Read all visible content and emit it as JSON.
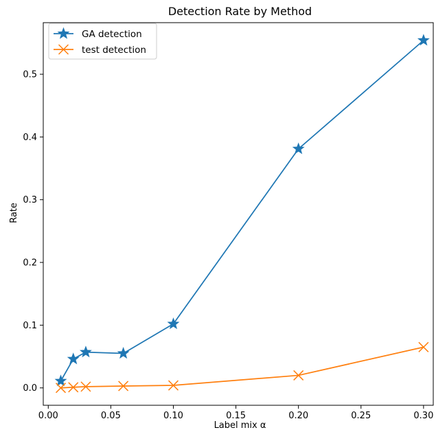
{
  "chart_data": {
    "type": "line",
    "title": "Detection Rate by Method",
    "xlabel": "Label mix α",
    "ylabel": "Rate",
    "xlim": [
      -0.004,
      0.3105
    ],
    "ylim": [
      -0.0277,
      0.5822
    ],
    "xticks": [
      0.0,
      0.05,
      0.1,
      0.15,
      0.2,
      0.25,
      0.3
    ],
    "xtick_labels": [
      "0.00",
      "0.05",
      "0.10",
      "0.15",
      "0.20",
      "0.25",
      "0.30"
    ],
    "yticks": [
      0.0,
      0.1,
      0.2,
      0.3,
      0.4,
      0.5
    ],
    "ytick_labels": [
      "0.0",
      "0.1",
      "0.2",
      "0.3",
      "0.4",
      "0.5"
    ],
    "grid": false,
    "legend": "top-left",
    "series": [
      {
        "name": "GA detection",
        "color": "#1f77b4",
        "marker": "star",
        "x": [
          0.01,
          0.02,
          0.03,
          0.06,
          0.1,
          0.2,
          0.3
        ],
        "y": [
          0.011,
          0.046,
          0.057,
          0.055,
          0.102,
          0.381,
          0.554
        ]
      },
      {
        "name": "test detection",
        "color": "#ff7f0e",
        "marker": "x",
        "x": [
          0.01,
          0.02,
          0.03,
          0.06,
          0.1,
          0.2,
          0.3
        ],
        "y": [
          0.0,
          0.001,
          0.002,
          0.003,
          0.004,
          0.02,
          0.065
        ]
      }
    ]
  }
}
